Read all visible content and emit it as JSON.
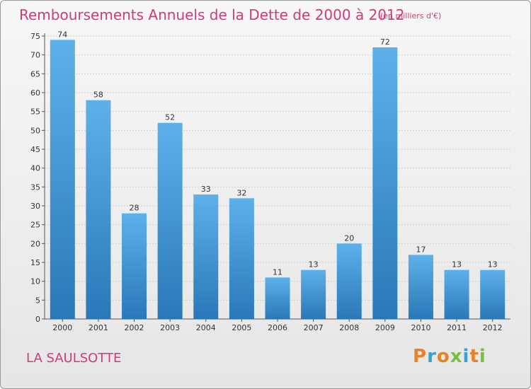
{
  "header": {
    "title": "Remboursements Annuels de la Dette de 2000 à 2012",
    "unit": "(en milliers d'€)"
  },
  "footer": {
    "town": "LA SAULSOTTE",
    "logo": "Proxiti"
  },
  "colors": {
    "accent": "#d13a7a",
    "bar_top": "#5eb0ea",
    "bar_bottom": "#2a78b8"
  },
  "chart_data": {
    "type": "bar",
    "title": "Remboursements Annuels de la Dette de 2000 à 2012",
    "subtitle": "(en milliers d'€)",
    "xlabel": "",
    "ylabel": "",
    "categories": [
      "2000",
      "2001",
      "2002",
      "2003",
      "2004",
      "2005",
      "2006",
      "2007",
      "2008",
      "2009",
      "2010",
      "2011",
      "2012"
    ],
    "values": [
      74,
      58,
      28,
      52,
      33,
      32,
      11,
      13,
      20,
      72,
      17,
      13,
      13
    ],
    "ylim": [
      0,
      75
    ],
    "yticks": [
      0,
      5,
      10,
      15,
      20,
      25,
      30,
      35,
      40,
      45,
      50,
      55,
      60,
      65,
      70,
      75
    ],
    "grid": true
  }
}
